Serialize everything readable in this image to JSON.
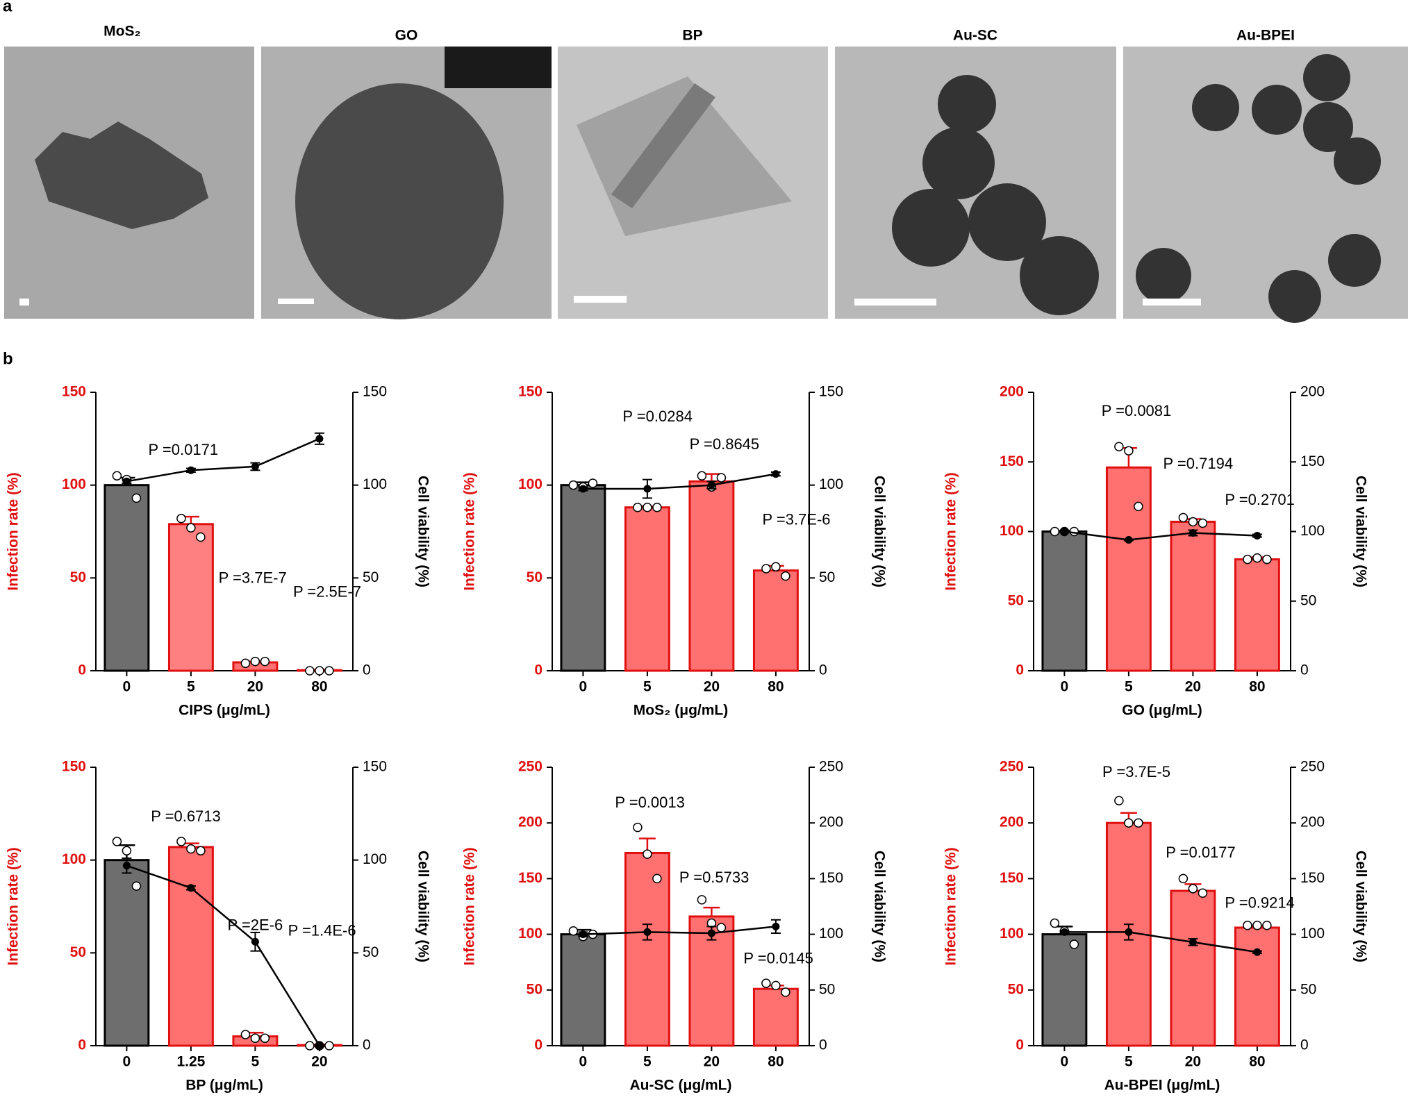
{
  "panel_labels": [
    "a",
    "b"
  ],
  "images": [
    {
      "label": "MoS₂"
    },
    {
      "label": "GO"
    },
    {
      "label": "BP"
    },
    {
      "label": "Au-SC"
    },
    {
      "label": "Au-BPEI"
    }
  ],
  "chart_data": [
    {
      "type": "bar",
      "xlabel": "CIPS (μg/mL)",
      "ylabel": "Infection rate (%)",
      "y2label": "Cell viability (%)",
      "categories": [
        "0",
        "5",
        "20",
        "80"
      ],
      "ylim": [
        0,
        150
      ],
      "yticks": [
        0,
        50,
        100,
        150
      ],
      "y2lim": [
        0,
        150
      ],
      "y2ticks": [
        0,
        50,
        100,
        150
      ],
      "series": [
        {
          "colors": [
            "#6e6e6e",
            "#ff8080",
            "#ff7070",
            "#ff7070"
          ],
          "edge_colors": [
            "#000000",
            "#e01010",
            "#e01010",
            "#e01010"
          ],
          "values": [
            100,
            79,
            4.5,
            0.3
          ],
          "errors": [
            4,
            4,
            0.5,
            0.2
          ],
          "points": [
            [
              105,
              103,
              93
            ],
            [
              82,
              77,
              72
            ],
            [
              4,
              5,
              5
            ],
            [
              0,
              0,
              0
            ]
          ]
        },
        {
          "axis": "y2",
          "color": "#000000",
          "values": [
            102,
            108,
            110,
            125
          ],
          "errors": [
            1,
            1,
            2,
            3
          ]
        }
      ],
      "annotations": [
        "P =0.0171",
        "P =3.7E-7",
        "P =2.5E-7"
      ]
    },
    {
      "type": "bar",
      "xlabel": "MoS₂ (μg/mL)",
      "ylabel": "Infection rate (%)",
      "y2label": "Cell viability (%)",
      "categories": [
        "0",
        "5",
        "20",
        "80"
      ],
      "ylim": [
        0,
        150
      ],
      "yticks": [
        0,
        50,
        100,
        150
      ],
      "y2lim": [
        0,
        150
      ],
      "y2ticks": [
        0,
        50,
        100,
        150
      ],
      "series": [
        {
          "colors": [
            "#6e6e6e",
            "#ff7070",
            "#ff7070",
            "#ff7070"
          ],
          "edge_colors": [
            "#000000",
            "#e01010",
            "#e01010",
            "#e01010"
          ],
          "values": [
            100,
            88,
            102,
            54
          ],
          "errors": [
            1.5,
            0.5,
            4,
            2.5
          ],
          "points": [
            [
              100,
              99,
              101
            ],
            [
              88,
              88,
              88
            ],
            [
              105,
              99,
              104
            ],
            [
              55,
              56,
              51
            ]
          ]
        },
        {
          "axis": "y2",
          "color": "#000000",
          "values": [
            98,
            98,
            100,
            106
          ],
          "errors": [
            1,
            5,
            2,
            1
          ]
        }
      ],
      "annotations": [
        "P =0.0284",
        "P =0.8645",
        "P =3.7E-6"
      ]
    },
    {
      "type": "bar",
      "xlabel": "GO (μg/mL)",
      "ylabel": "Infection rate (%)",
      "y2label": "Cell viability (%)",
      "categories": [
        "0",
        "5",
        "20",
        "80"
      ],
      "ylim": [
        0,
        200
      ],
      "yticks": [
        0,
        50,
        100,
        150,
        200
      ],
      "y2lim": [
        0,
        200
      ],
      "y2ticks": [
        0,
        50,
        100,
        150,
        200
      ],
      "series": [
        {
          "colors": [
            "#6e6e6e",
            "#ff7070",
            "#ff7070",
            "#ff7070"
          ],
          "edge_colors": [
            "#000000",
            "#e01010",
            "#e01010",
            "#e01010"
          ],
          "values": [
            100,
            146,
            107,
            80
          ],
          "errors": [
            0.5,
            14,
            2,
            1.5
          ],
          "points": [
            [
              100,
              100,
              100
            ],
            [
              161,
              158,
              118
            ],
            [
              110,
              107,
              106
            ],
            [
              80,
              81,
              80
            ]
          ]
        },
        {
          "axis": "y2",
          "color": "#000000",
          "values": [
            100,
            94,
            99,
            97
          ],
          "errors": [
            0.5,
            0.5,
            2,
            1
          ]
        }
      ],
      "annotations": [
        "P =0.0081",
        "P =0.7194",
        "P =0.2701"
      ]
    },
    {
      "type": "bar",
      "xlabel": "BP (μg/mL)",
      "ylabel": "Infection rate (%)",
      "y2label": "Cell viability (%)",
      "categories": [
        "0",
        "1.25",
        "5",
        "20"
      ],
      "ylim": [
        0,
        150
      ],
      "yticks": [
        0,
        50,
        100,
        150
      ],
      "y2lim": [
        0,
        150
      ],
      "y2ticks": [
        0,
        50,
        100,
        150
      ],
      "series": [
        {
          "colors": [
            "#6e6e6e",
            "#ff7070",
            "#ff7070",
            "#ff7070"
          ],
          "edge_colors": [
            "#000000",
            "#e01010",
            "#e01010",
            "#e01010"
          ],
          "values": [
            100,
            107,
            5,
            0.3
          ],
          "errors": [
            8,
            2,
            2,
            0.2
          ],
          "points": [
            [
              110,
              105,
              86
            ],
            [
              110,
              106,
              105
            ],
            [
              6,
              4,
              4
            ],
            [
              0,
              0,
              0
            ]
          ]
        },
        {
          "axis": "y2",
          "color": "#000000",
          "values": [
            97,
            85,
            56,
            0
          ],
          "errors": [
            4,
            1,
            5,
            0.5
          ]
        }
      ],
      "annotations": [
        "P =0.6713",
        "P =2E-6",
        "P =1.4E-6"
      ]
    },
    {
      "type": "bar",
      "xlabel": "Au-SC (μg/mL)",
      "ylabel": "Infection rate (%)",
      "y2label": "Cell viability (%)",
      "categories": [
        "0",
        "5",
        "20",
        "80"
      ],
      "ylim": [
        0,
        250
      ],
      "yticks": [
        0,
        50,
        100,
        150,
        200,
        250
      ],
      "y2lim": [
        0,
        250
      ],
      "y2ticks": [
        0,
        50,
        100,
        150,
        200,
        250
      ],
      "series": [
        {
          "colors": [
            "#6e6e6e",
            "#ff7070",
            "#ff7070",
            "#ff7070"
          ],
          "edge_colors": [
            "#000000",
            "#e01010",
            "#e01010",
            "#e01010"
          ],
          "values": [
            100,
            173,
            116,
            51
          ],
          "errors": [
            4,
            13,
            8,
            3
          ],
          "points": [
            [
              103,
              98,
              100
            ],
            [
              196,
              172,
              150
            ],
            [
              131,
              110,
              106
            ],
            [
              56,
              54,
              48
            ]
          ]
        },
        {
          "axis": "y2",
          "color": "#000000",
          "values": [
            100,
            102,
            101,
            107
          ],
          "errors": [
            2,
            7,
            6,
            6
          ]
        }
      ],
      "annotations": [
        "P =0.0013",
        "P =0.5733",
        "P =0.0145"
      ]
    },
    {
      "type": "bar",
      "xlabel": "Au-BPEI (μg/mL)",
      "ylabel": "Infection rate (%)",
      "y2label": "Cell viability (%)",
      "categories": [
        "0",
        "5",
        "20",
        "80"
      ],
      "ylim": [
        0,
        250
      ],
      "yticks": [
        0,
        50,
        100,
        150,
        200,
        250
      ],
      "y2lim": [
        0,
        250
      ],
      "y2ticks": [
        0,
        50,
        100,
        150,
        200,
        250
      ],
      "series": [
        {
          "colors": [
            "#6e6e6e",
            "#ff7070",
            "#ff7070",
            "#ff7070"
          ],
          "edge_colors": [
            "#000000",
            "#e01010",
            "#e01010",
            "#e01010"
          ],
          "values": [
            100,
            200,
            139,
            106
          ],
          "errors": [
            7,
            9,
            6,
            1.5
          ],
          "points": [
            [
              110,
              103,
              91
            ],
            [
              220,
              200,
              200
            ],
            [
              150,
              141,
              137
            ],
            [
              108,
              108,
              108
            ]
          ]
        },
        {
          "axis": "y2",
          "color": "#000000",
          "values": [
            102,
            102,
            93,
            84
          ],
          "errors": [
            1,
            7,
            3,
            1
          ]
        }
      ],
      "annotations": [
        "P =3.7E-5",
        "P =0.0177",
        "P =0.9214"
      ]
    }
  ]
}
